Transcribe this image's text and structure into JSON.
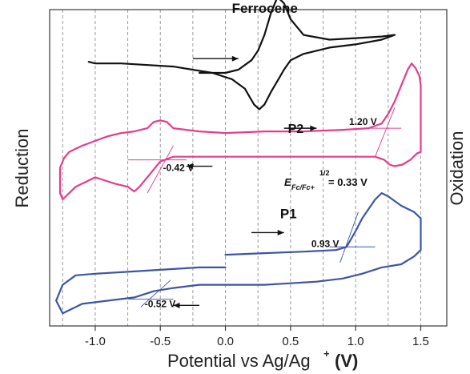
{
  "chart_data": {
    "type": "line",
    "xlabel": "Potential vs Ag/Ag",
    "xlabel_sup": "+",
    "xlabel_unit": "(V)",
    "ylabel_left": "Reduction",
    "ylabel_right": "Oxidation",
    "xlim": [
      -1.35,
      1.7
    ],
    "xticks": [
      "-1.0",
      "-0.5",
      "0.0",
      "0.5",
      "1.0",
      "1.5"
    ],
    "xtick_values": [
      -1.0,
      -0.5,
      0.0,
      0.5,
      1.0,
      1.5
    ],
    "vgrid": [
      -1.25,
      -1.0,
      -0.75,
      -0.5,
      -0.25,
      0.0,
      0.25,
      0.5,
      0.75,
      1.0,
      1.25,
      1.5
    ],
    "grid": "vertical dashed",
    "series": [
      {
        "name": "Ferrocene",
        "color": "#111111",
        "x": [
          -0.2,
          0.0,
          0.1,
          0.2,
          0.25,
          0.3,
          0.35,
          0.4,
          0.45,
          0.5,
          0.6,
          0.8,
          1.0,
          1.2,
          1.3,
          1.2,
          1.0,
          0.8,
          0.6,
          0.5,
          0.45,
          0.4,
          0.35,
          0.3,
          0.26,
          0.22,
          0.15,
          0.05,
          -0.1,
          -0.4,
          -0.8,
          -1.0,
          -1.05
        ],
        "y": [
          0.8,
          0.8,
          0.81,
          0.84,
          0.87,
          0.92,
          0.99,
          1.04,
          1.02,
          0.97,
          0.92,
          0.905,
          0.91,
          0.915,
          0.92,
          0.905,
          0.89,
          0.88,
          0.86,
          0.84,
          0.81,
          0.775,
          0.74,
          0.7,
          0.685,
          0.7,
          0.75,
          0.78,
          0.8,
          0.82,
          0.83,
          0.83,
          0.835
        ]
      },
      {
        "name": "P2",
        "color": "#e63c8c",
        "x": [
          0.0,
          0.3,
          0.6,
          0.9,
          1.1,
          1.2,
          1.25,
          1.3,
          1.35,
          1.4,
          1.43,
          1.46,
          1.49,
          1.5,
          1.5,
          1.47,
          1.42,
          1.36,
          1.3,
          1.26,
          1.22,
          1.15,
          1.0,
          0.7,
          0.4,
          0.1,
          0.0,
          -0.2,
          -0.4,
          -0.5,
          -0.58,
          -0.62,
          -0.66,
          -0.7,
          -0.75,
          -0.85,
          -1.0,
          -1.15,
          -1.25,
          -1.27,
          -1.27,
          -1.24,
          -1.2,
          -1.1,
          -1.0,
          -0.9,
          -0.8,
          -0.7,
          -0.6,
          -0.55,
          -0.5,
          -0.45,
          -0.4,
          -0.3,
          -0.2,
          0.0
        ],
        "y": [
          0.61,
          0.615,
          0.615,
          0.62,
          0.625,
          0.64,
          0.67,
          0.71,
          0.76,
          0.81,
          0.83,
          0.815,
          0.79,
          0.76,
          0.55,
          0.545,
          0.525,
          0.51,
          0.505,
          0.51,
          0.525,
          0.535,
          0.535,
          0.535,
          0.535,
          0.535,
          0.535,
          0.535,
          0.535,
          0.52,
          0.48,
          0.46,
          0.44,
          0.425,
          0.44,
          0.45,
          0.47,
          0.44,
          0.4,
          0.42,
          0.5,
          0.53,
          0.55,
          0.57,
          0.585,
          0.6,
          0.61,
          0.615,
          0.625,
          0.645,
          0.65,
          0.645,
          0.625,
          0.62,
          0.615,
          0.61
        ]
      },
      {
        "name": "P1",
        "color": "#3d55a6",
        "x": [
          0.0,
          0.3,
          0.6,
          0.85,
          0.93,
          1.0,
          1.05,
          1.1,
          1.15,
          1.2,
          1.25,
          1.35,
          1.45,
          1.5,
          1.5,
          1.45,
          1.35,
          1.2,
          1.05,
          0.9,
          0.7,
          0.5,
          0.3,
          0.1,
          0.0,
          -0.2,
          -0.4,
          -0.55,
          -0.7,
          -0.9,
          -1.1,
          -1.25,
          -1.3,
          -1.25,
          -1.15,
          -1.0,
          -0.8,
          -0.6,
          -0.4,
          -0.2,
          0.0
        ],
        "y": [
          0.225,
          0.23,
          0.235,
          0.24,
          0.25,
          0.3,
          0.34,
          0.37,
          0.4,
          0.42,
          0.41,
          0.38,
          0.36,
          0.34,
          0.24,
          0.22,
          0.195,
          0.185,
          0.165,
          0.15,
          0.14,
          0.135,
          0.13,
          0.13,
          0.13,
          0.13,
          0.12,
          0.11,
          0.09,
          0.08,
          0.07,
          0.04,
          0.08,
          0.13,
          0.16,
          0.165,
          0.17,
          0.175,
          0.18,
          0.185,
          0.185
        ]
      }
    ],
    "annotations": [
      {
        "text": "Ferrocene",
        "x": 0.05,
        "y": 0.99,
        "size": 17
      },
      {
        "text": "P2",
        "x": 0.48,
        "y": 0.61,
        "size": 16
      },
      {
        "text": "1.20 V",
        "x": 0.95,
        "y": 0.635,
        "size": 12
      },
      {
        "text": "-0.42 V",
        "x": -0.48,
        "y": 0.49,
        "size": 12
      },
      {
        "text": "P1",
        "x": 0.42,
        "y": 0.34,
        "size": 17
      },
      {
        "text": "0.93 V",
        "x": 0.66,
        "y": 0.25,
        "size": 12
      },
      {
        "text": "-0.52 V",
        "x": -0.62,
        "y": 0.06,
        "size": 12
      }
    ],
    "half_wave_label": {
      "main": "E",
      "subscript": "Fc/Fc+",
      "superscript": "1/2",
      "value": "= 0.33 V"
    },
    "arrows": [
      {
        "from": [
          -0.25,
          0.845
        ],
        "to": [
          0.1,
          0.845
        ]
      },
      {
        "from": [
          0.45,
          0.625
        ],
        "to": [
          0.7,
          0.625
        ]
      },
      {
        "from": [
          -0.1,
          0.505
        ],
        "to": [
          -0.3,
          0.505
        ]
      },
      {
        "from": [
          0.2,
          0.295
        ],
        "to": [
          0.45,
          0.295
        ]
      },
      {
        "from": [
          -0.2,
          0.065
        ],
        "to": [
          -0.4,
          0.065
        ]
      }
    ],
    "tangents": [
      {
        "series": "P2",
        "from": [
          1.15,
          0.535
        ],
        "to": [
          1.3,
          0.69
        ]
      },
      {
        "series": "P2",
        "from": [
          1.05,
          0.625
        ],
        "to": [
          1.35,
          0.625
        ]
      },
      {
        "series": "P2",
        "from": [
          -0.75,
          0.525
        ],
        "to": [
          -0.3,
          0.525
        ]
      },
      {
        "series": "P2",
        "from": [
          -0.6,
          0.42
        ],
        "to": [
          -0.4,
          0.57
        ]
      },
      {
        "series": "P1",
        "from": [
          0.8,
          0.25
        ],
        "to": [
          1.15,
          0.25
        ]
      },
      {
        "series": "P1",
        "from": [
          0.88,
          0.2
        ],
        "to": [
          1.02,
          0.36
        ]
      },
      {
        "series": "P1",
        "from": [
          -0.75,
          0.085
        ],
        "to": [
          -0.4,
          0.085
        ]
      },
      {
        "series": "P1",
        "from": [
          -0.65,
          0.06
        ],
        "to": [
          -0.42,
          0.145
        ]
      }
    ]
  }
}
